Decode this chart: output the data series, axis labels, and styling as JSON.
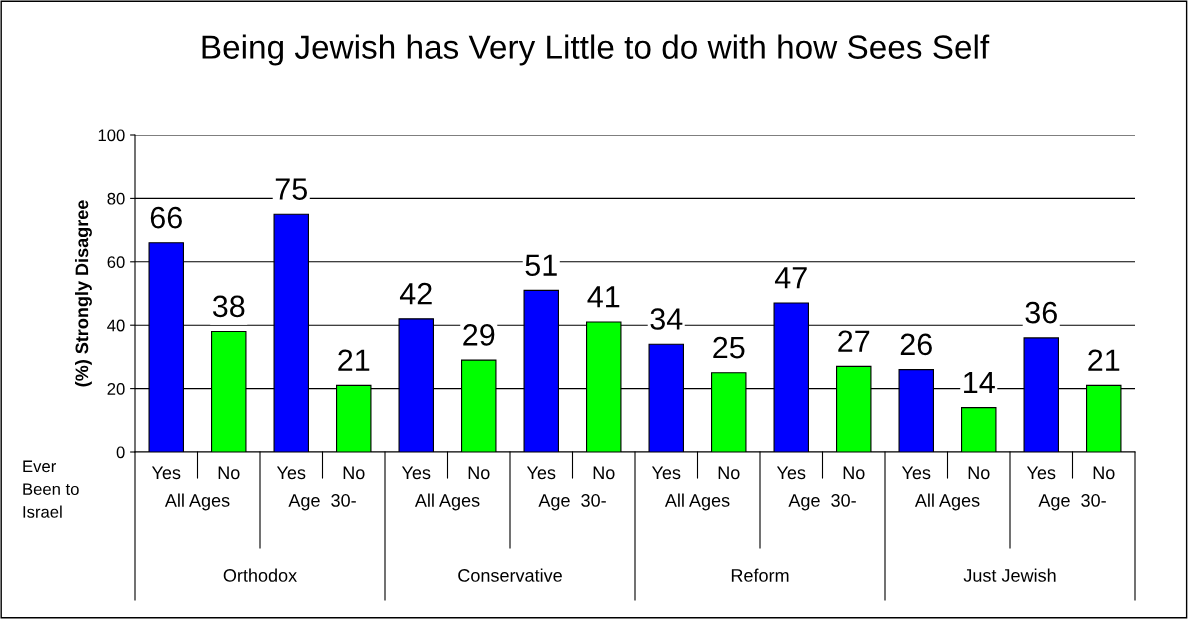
{
  "chart_data": {
    "type": "bar",
    "title": "Being Jewish has Very Little to do with how Sees Self",
    "ylabel": "(%) Strongly Disagree",
    "categories": [
      "Yes",
      "No",
      "Yes",
      "No",
      "Yes",
      "No",
      "Yes",
      "No",
      "Yes",
      "No",
      "Yes",
      "No",
      "Yes",
      "No",
      "Yes",
      "No"
    ],
    "values": [
      66,
      38,
      75,
      21,
      42,
      29,
      51,
      41,
      34,
      25,
      47,
      27,
      26,
      14,
      36,
      21
    ],
    "colors": [
      "#0000ff",
      "#00ff00",
      "#0000ff",
      "#00ff00",
      "#0000ff",
      "#00ff00",
      "#0000ff",
      "#00ff00",
      "#0000ff",
      "#00ff00",
      "#0000ff",
      "#00ff00",
      "#0000ff",
      "#00ff00",
      "#0000ff",
      "#00ff00"
    ],
    "ylim": [
      0,
      100
    ],
    "yticks": [
      0,
      20,
      40,
      60,
      80,
      100
    ],
    "grid": "y",
    "data_labels": true,
    "annotations": [
      "Ever Been to Israel",
      "All Ages",
      "Age  30-",
      "All Ages",
      "Age  30-",
      "All Ages",
      "Age  30-",
      "All Ages",
      "Age  30-",
      "Orthodox",
      "Conservative",
      "Reform",
      "Just Jewish"
    ]
  }
}
